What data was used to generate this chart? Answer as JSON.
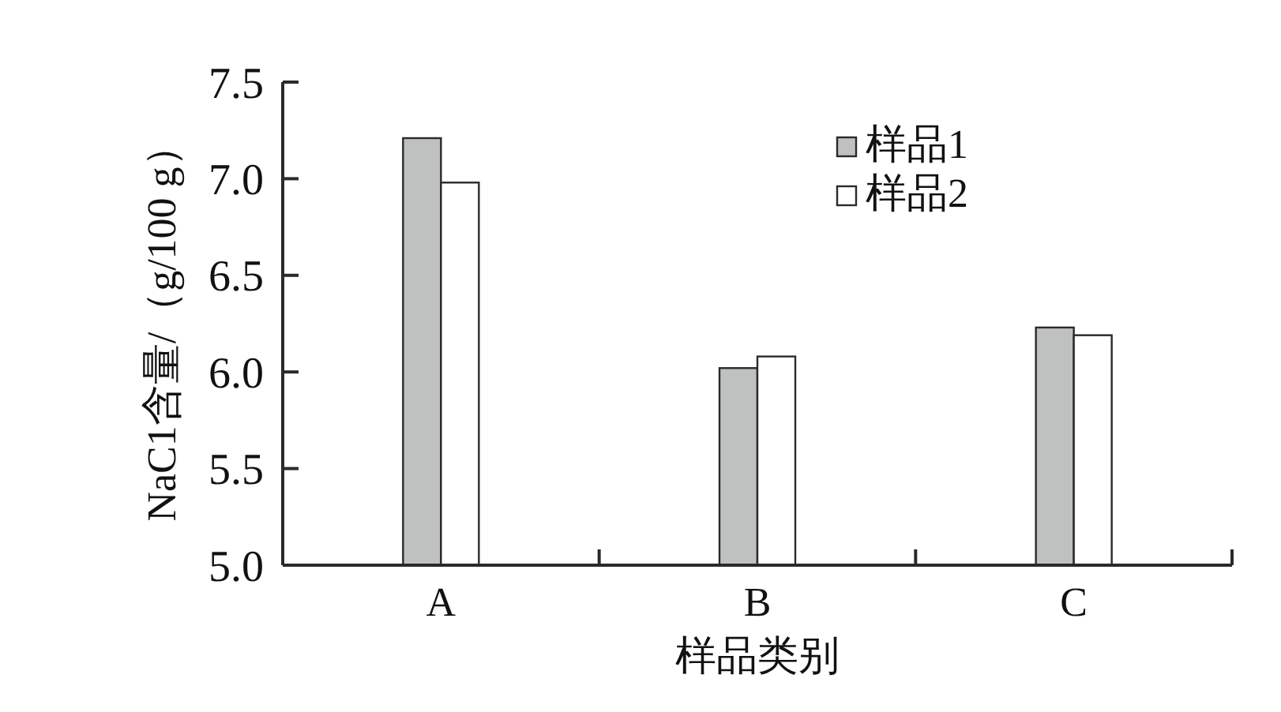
{
  "chart_data": {
    "type": "bar",
    "xlabel": "样品类别",
    "ylabel": "NaC1含量/（g/100 g）",
    "categories": [
      "A",
      "B",
      "C"
    ],
    "series": [
      {
        "name": "样品1",
        "color": "#bfc1c1",
        "values": [
          7.21,
          6.02,
          6.23
        ]
      },
      {
        "name": "样品2",
        "color": "#ffffff",
        "values": [
          6.98,
          6.08,
          6.19
        ]
      }
    ],
    "ylim": [
      5.0,
      7.5
    ],
    "yticks": [
      {
        "value": 5.0,
        "label": "5.0"
      },
      5.5,
      {
        "value": 6.0,
        "label": "6.0"
      },
      6.5,
      {
        "value": 7.0,
        "label": "7.0"
      },
      7.5
    ],
    "grid": false,
    "legend": "top right"
  }
}
